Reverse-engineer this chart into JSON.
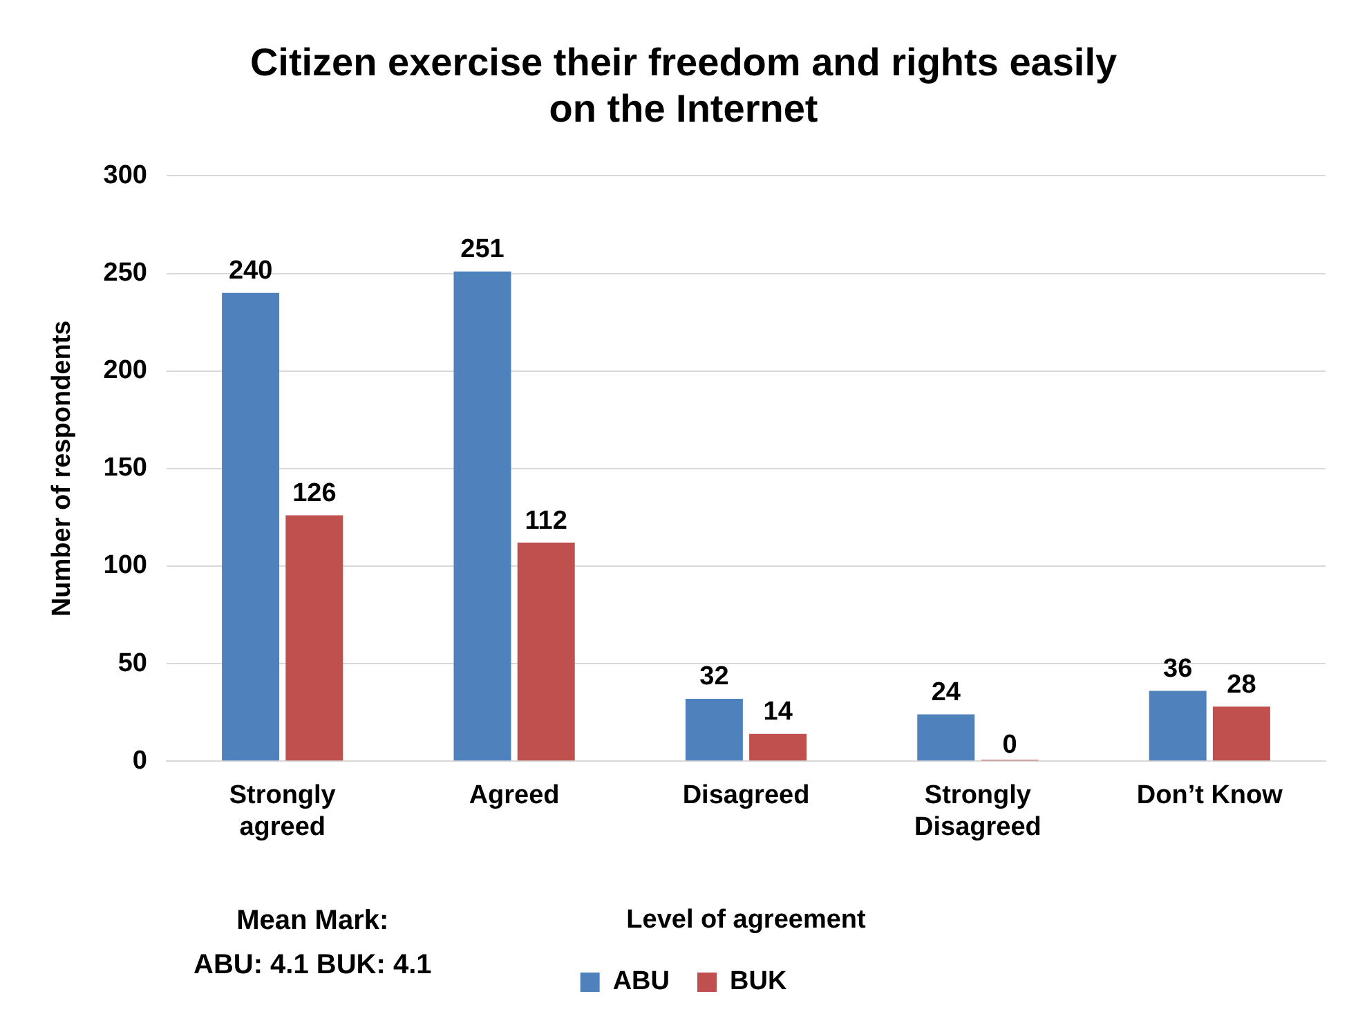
{
  "chart_data": {
    "type": "bar",
    "title": "Citizen exercise their freedom and rights easily on the Internet",
    "xlabel": "Level of agreement",
    "ylabel": "Number of respondents",
    "categories": [
      "Strongly agreed",
      "Agreed",
      "Disagreed",
      "Strongly Disagreed",
      "Don’t Know"
    ],
    "series": [
      {
        "name": "ABU",
        "color": "#4f81bd",
        "values": [
          240,
          251,
          32,
          24,
          36
        ]
      },
      {
        "name": "BUK",
        "color": "#c0504d",
        "values": [
          126,
          112,
          14,
          0,
          28
        ]
      }
    ],
    "ylim": [
      0,
      300
    ],
    "yticks": [
      0,
      50,
      100,
      150,
      200,
      250,
      300
    ],
    "grid": "y",
    "legend": "bottom",
    "data_labels": true,
    "annotations": [
      "Mean Mark:",
      "ABU: 4.1 BUK: 4.1"
    ]
  }
}
